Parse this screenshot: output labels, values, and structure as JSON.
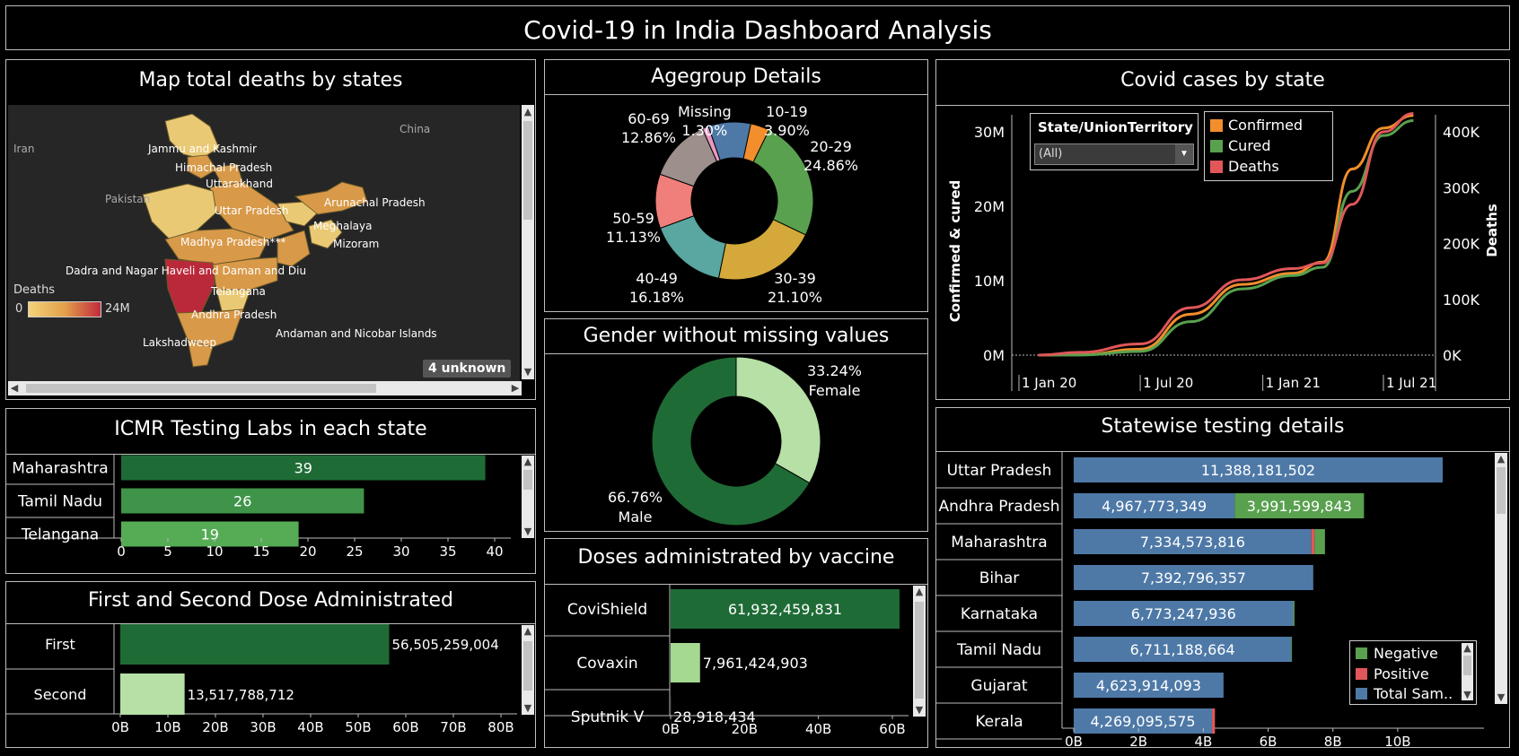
{
  "dashboard": {
    "title": "Covid-19 in India Dashboard Analysis"
  },
  "map": {
    "title": "Map total deaths by states",
    "countries": [
      "Iran",
      "Pakistan",
      "China"
    ],
    "states": [
      "Jammu and Kashmir",
      "Himachal Pradesh",
      "Uttarakhand",
      "Uttar Pradesh",
      "Arunachal Pradesh",
      "Meghalaya",
      "Madhya Pradesh***",
      "Mizoram",
      "Dadra and Nagar Haveli and Daman and Diu",
      "Telangana",
      "Andhra Pradesh",
      "Andaman and Nicobar Islands",
      "Lakshadweep"
    ],
    "legend": {
      "title": "Deaths",
      "min": "0",
      "max": "24M"
    },
    "unknown_badge": "4 unknown",
    "colors": {
      "low": "#f5d27a",
      "mid": "#e2a04a",
      "high": "#c22a3c"
    }
  },
  "labs": {
    "title": "ICMR Testing Labs in each state",
    "categories": [
      "Maharashtra",
      "Tamil Nadu",
      "Telangana"
    ],
    "values": [
      39,
      26,
      19
    ],
    "value_labels": [
      "39",
      "26",
      "19"
    ],
    "ticks": [
      "0",
      "5",
      "10",
      "15",
      "20",
      "25",
      "30",
      "35",
      "40"
    ]
  },
  "doses": {
    "title": "First and Second Dose Administrated",
    "categories": [
      "First",
      "Second"
    ],
    "values": [
      56505259004,
      13517788712
    ],
    "value_labels": [
      "56,505,259,004",
      "13,517,788,712"
    ],
    "ticks": [
      "0B",
      "10B",
      "20B",
      "30B",
      "40B",
      "50B",
      "60B",
      "70B",
      "80B"
    ]
  },
  "agegroup": {
    "title": "Agegroup Details",
    "slices": [
      {
        "label": "10-19",
        "pct": "3.90%",
        "value": 3.9,
        "color": "#f28e2b"
      },
      {
        "label": "20-29",
        "pct": "24.86%",
        "value": 24.86,
        "color": "#59a14f"
      },
      {
        "label": "30-39",
        "pct": "21.10%",
        "value": 21.1,
        "color": "#d4a83a"
      },
      {
        "label": "40-49",
        "pct": "16.18%",
        "value": 16.18,
        "color": "#5aa6a0"
      },
      {
        "label": "50-59",
        "pct": "11.13%",
        "value": 11.13,
        "color": "#f07f7b"
      },
      {
        "label": "60-69",
        "pct": "12.86%",
        "value": 12.86,
        "color": "#9c8f8c"
      },
      {
        "label": "Missing",
        "pct": "1.30%",
        "value": 1.3,
        "color": "#e899c3"
      }
    ],
    "extra_slice": {
      "value": 8.67,
      "color": "#4e79a7"
    }
  },
  "gender": {
    "title": "Gender without missing values",
    "slices": [
      {
        "label": "Female",
        "pct": "33.24%",
        "value": 33.24,
        "color": "#b6e0a6"
      },
      {
        "label": "Male",
        "pct": "66.76%",
        "value": 66.76,
        "color": "#1f6b36"
      }
    ]
  },
  "vaccine": {
    "title": "Doses administrated by vaccine",
    "categories": [
      "CoviShield",
      "Covaxin",
      "Sputnik V"
    ],
    "values": [
      61932459831,
      7961424903,
      28918434
    ],
    "value_labels": [
      "61,932,459,831",
      "7,961,424,903",
      "28,918,434"
    ],
    "ticks": [
      "0B",
      "20B",
      "40B",
      "60B"
    ]
  },
  "cases": {
    "title": "Covid cases by state",
    "filter": {
      "label": "State/UnionTerritory",
      "value": "(All)"
    },
    "legend": [
      "Confirmed",
      "Cured",
      "Deaths"
    ],
    "colors": {
      "Confirmed": "#f28e2b",
      "Cured": "#59a14f",
      "Deaths": "#e15759"
    },
    "left_axis_title": "Confirmed & cured",
    "right_axis_title": "Deaths",
    "left_ticks": [
      "0M",
      "10M",
      "20M",
      "30M"
    ],
    "right_ticks": [
      "0K",
      "100K",
      "200K",
      "300K",
      "400K"
    ],
    "x_ticks": [
      "1 Jan 20",
      "1 Jul 20",
      "1 Jan 21",
      "1 Jul 21"
    ]
  },
  "testing": {
    "title": "Statewise testing details",
    "legend": [
      "Negative",
      "Positive",
      "Total Sam.."
    ],
    "colors": {
      "Negative": "#59a14f",
      "Positive": "#e15759",
      "Total": "#4e79a7"
    },
    "ticks": [
      "0B",
      "2B",
      "4B",
      "6B",
      "8B",
      "10B"
    ],
    "rows": [
      {
        "state": "Uttar Pradesh",
        "total": 11388181502,
        "total_label": "11,388,181,502",
        "positive": 0,
        "negative": 0,
        "negative_label": ""
      },
      {
        "state": "Andhra Pradesh",
        "total": 4967773349,
        "total_label": "4,967,773,349",
        "positive": 0,
        "negative": 3991599843,
        "negative_label": "3,991,599,843"
      },
      {
        "state": "Maharashtra",
        "total": 7334573816,
        "total_label": "7,334,573,816",
        "positive": 100000000,
        "negative": 320000000,
        "negative_label": ""
      },
      {
        "state": "Bihar",
        "total": 7392796357,
        "total_label": "7,392,796,357",
        "positive": 0,
        "negative": 0,
        "negative_label": ""
      },
      {
        "state": "Karnataka",
        "total": 6773247936,
        "total_label": "6,773,247,936",
        "positive": 0,
        "negative": 40000000,
        "negative_label": ""
      },
      {
        "state": "Tamil Nadu",
        "total": 6711188664,
        "total_label": "6,711,188,664",
        "positive": 0,
        "negative": 25000000,
        "negative_label": ""
      },
      {
        "state": "Gujarat",
        "total": 4623914093,
        "total_label": "4,623,914,093",
        "positive": 0,
        "negative": 0,
        "negative_label": ""
      },
      {
        "state": "Kerala",
        "total": 4269095575,
        "total_label": "4,269,095,575",
        "positive": 90000000,
        "negative": 0,
        "negative_label": ""
      }
    ]
  },
  "chart_data": [
    {
      "type": "bar",
      "title": "ICMR Testing Labs in each state",
      "categories": [
        "Maharashtra",
        "Tamil Nadu",
        "Telangana"
      ],
      "values": [
        39,
        26,
        19
      ],
      "xlim": [
        0,
        40
      ]
    },
    {
      "type": "bar",
      "title": "First and Second Dose Administrated",
      "categories": [
        "First",
        "Second"
      ],
      "values": [
        56505259004,
        13517788712
      ],
      "xlim": [
        0,
        80000000000
      ]
    },
    {
      "type": "pie",
      "title": "Agegroup Details",
      "categories": [
        "10-19",
        "20-29",
        "30-39",
        "40-49",
        "50-59",
        "60-69",
        "Missing"
      ],
      "values": [
        3.9,
        24.86,
        21.1,
        16.18,
        11.13,
        12.86,
        1.3
      ]
    },
    {
      "type": "pie",
      "title": "Gender without missing values",
      "categories": [
        "Female",
        "Male"
      ],
      "values": [
        33.24,
        66.76
      ]
    },
    {
      "type": "bar",
      "title": "Doses administrated by vaccine",
      "categories": [
        "CoviShield",
        "Covaxin",
        "Sputnik V"
      ],
      "values": [
        61932459831,
        7961424903,
        28918434
      ],
      "xlim": [
        0,
        60000000000
      ]
    },
    {
      "type": "line",
      "title": "Covid cases by state",
      "x": [
        "2020-01-30",
        "2020-04-01",
        "2020-07-01",
        "2020-09-15",
        "2020-12-01",
        "2021-02-15",
        "2021-04-01",
        "2021-05-15",
        "2021-07-01",
        "2021-08-15"
      ],
      "series": [
        {
          "name": "Confirmed",
          "values": [
            0,
            0.05,
            0.8,
            5.5,
            9.5,
            11.0,
            12.5,
            25.0,
            30.5,
            32.2
          ]
        },
        {
          "name": "Cured",
          "values": [
            0,
            0.02,
            0.5,
            4.5,
            8.9,
            10.7,
            11.8,
            22.0,
            29.5,
            31.5
          ]
        },
        {
          "name": "Deaths",
          "values": [
            0,
            5,
            20,
            85,
            135,
            155,
            165,
            270,
            400,
            433
          ]
        }
      ],
      "ylabel": "Confirmed & cured",
      "y_units": "M",
      "y2label": "Deaths",
      "y2_units": "K",
      "ylim": [
        0,
        30
      ],
      "y2lim": [
        0,
        400
      ]
    },
    {
      "type": "bar",
      "title": "Statewise testing details",
      "categories": [
        "Uttar Pradesh",
        "Andhra Pradesh",
        "Maharashtra",
        "Bihar",
        "Karnataka",
        "Tamil Nadu",
        "Gujarat",
        "Kerala"
      ],
      "series": [
        {
          "name": "Total Sam..",
          "values": [
            11388181502,
            4967773349,
            7334573816,
            7392796357,
            6773247936,
            6711188664,
            4623914093,
            4269095575
          ]
        },
        {
          "name": "Negative",
          "values": [
            0,
            3991599843,
            320000000,
            0,
            40000000,
            25000000,
            0,
            0
          ]
        },
        {
          "name": "Positive",
          "values": [
            0,
            0,
            100000000,
            0,
            0,
            0,
            0,
            90000000
          ]
        }
      ],
      "xlim": [
        0,
        12000000000
      ]
    }
  ]
}
